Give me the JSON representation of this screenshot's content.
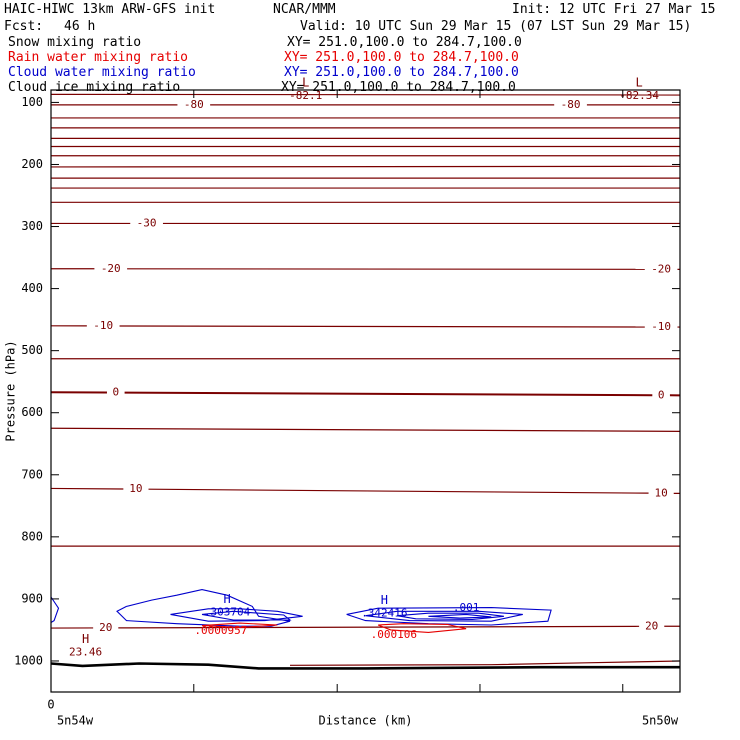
{
  "header": {
    "model": "HAIC-HIWC 13km ARW-GFS init",
    "org": "NCAR/MMM",
    "init": "Init: 12 UTC Fri 27 Mar 15",
    "fcst_label": "Fcst:",
    "fcst_value": "46 h",
    "valid": "Valid: 10 UTC Sun 29 Mar 15 (07 LST Sun 29 Mar 15)"
  },
  "fields": [
    {
      "name": "Snow mixing ratio",
      "xy": "XY= 251.0,100.0 to 284.7,100.0",
      "color": "#000000"
    },
    {
      "name": "Rain water mixing ratio",
      "xy": "XY= 251.0,100.0 to 284.7,100.0",
      "color": "#e60000"
    },
    {
      "name": "Cloud water mixing ratio",
      "xy": "XY= 251.0,100.0 to 284.7,100.0",
      "color": "#0000cc"
    },
    {
      "name": "Cloud ice mixing ratio",
      "xy": "XY= 251.0,100.0 to 284.7,100.0",
      "color": "#000000"
    }
  ],
  "colors": {
    "temperature": "#7a0000",
    "cloud_water": "#0000cc",
    "rain": "#e60000",
    "terrain": "#000000"
  },
  "chart_data": {
    "type": "cross-section contour",
    "ylabel": "Pressure (hPa)",
    "xlabel": "Distance (km)",
    "xlim": [
      0,
      1
    ],
    "ylim": [
      1050,
      80
    ],
    "y_ticks": [
      100,
      200,
      300,
      400,
      500,
      600,
      700,
      800,
      900,
      1000
    ],
    "x_ticks": [
      0,
      0.227,
      0.455,
      0.682,
      0.909
    ],
    "x_tick_label_first": "0",
    "x_endpoint_labels": [
      "5n54w",
      "5n50w"
    ],
    "temperature_contours": [
      {
        "p_left": 87,
        "p_right": 88
      },
      {
        "p_left": 104,
        "p_right": 104,
        "labels": [
          {
            "x": 0.227,
            "text": "-80"
          },
          {
            "x": 0.826,
            "text": "-80"
          }
        ]
      },
      {
        "p_left": 125,
        "p_right": 125
      },
      {
        "p_left": 141,
        "p_right": 141
      },
      {
        "p_left": 158,
        "p_right": 158
      },
      {
        "p_left": 171,
        "p_right": 171
      },
      {
        "p_left": 186,
        "p_right": 186
      },
      {
        "p_left": 204,
        "p_right": 203
      },
      {
        "p_left": 222,
        "p_right": 222
      },
      {
        "p_left": 238,
        "p_right": 238
      },
      {
        "p_left": 261,
        "p_right": 261
      },
      {
        "p_left": 295,
        "p_right": 295,
        "labels": [
          {
            "x": 0.152,
            "text": "-30"
          }
        ]
      },
      {
        "p_left": 368,
        "p_right": 369,
        "labels": [
          {
            "x": 0.095,
            "text": "-20"
          },
          {
            "x": 0.97,
            "text": "-20"
          }
        ]
      },
      {
        "p_left": 460,
        "p_right": 462,
        "labels": [
          {
            "x": 0.083,
            "text": "-10"
          },
          {
            "x": 0.97,
            "text": "-10"
          }
        ]
      },
      {
        "p_left": 513,
        "p_right": 513
      },
      {
        "p_left": 567,
        "p_right": 572,
        "labels": [
          {
            "x": 0.103,
            "text": "0"
          },
          {
            "x": 0.97,
            "text": "0"
          }
        ]
      },
      {
        "p_left": 625,
        "p_right": 630
      },
      {
        "p_left": 722,
        "p_right": 730,
        "labels": [
          {
            "x": 0.135,
            "text": "10"
          },
          {
            "x": 0.97,
            "text": "10"
          }
        ]
      },
      {
        "p_left": 815,
        "p_right": 815
      },
      {
        "p_left": 947,
        "p_right": 944,
        "labels": [
          {
            "x": 0.087,
            "text": "20"
          },
          {
            "x": 0.955,
            "text": "20"
          }
        ]
      }
    ],
    "extrema": [
      {
        "kind": "L",
        "x": 0.405,
        "p": 88,
        "value": "-82.1",
        "color": "#7a0000"
      },
      {
        "kind": "L",
        "x": 0.935,
        "p": 88,
        "value": "-82.34",
        "color": "#7a0000"
      },
      {
        "kind": "H",
        "x": 0.055,
        "p": 985,
        "value": "23.46",
        "color": "#7a0000"
      },
      {
        "kind": "H",
        "x": 0.28,
        "p": 920,
        "value": ".303704",
        "color": "#0000cc"
      },
      {
        "kind": "H",
        "x": 0.53,
        "p": 922,
        "value": ".342416",
        "color": "#0000cc"
      }
    ],
    "contour_labels": [
      {
        "x": 0.66,
        "p": 915,
        "text": ".001",
        "color": "#0000cc"
      },
      {
        "x": 0.27,
        "p": 952,
        "text": ".0000957",
        "color": "#e60000"
      },
      {
        "x": 0.545,
        "p": 958,
        "text": ".000106",
        "color": "#e60000"
      }
    ],
    "terrain": [
      [
        0,
        1004
      ],
      [
        0.05,
        1008
      ],
      [
        0.14,
        1004
      ],
      [
        0.25,
        1006
      ],
      [
        0.33,
        1012
      ],
      [
        0.5,
        1012
      ],
      [
        0.78,
        1010
      ],
      [
        1.0,
        1010
      ]
    ],
    "terrain_upper": [
      [
        0.38,
        1007
      ],
      [
        0.7,
        1006
      ],
      [
        0.85,
        1003
      ],
      [
        1.0,
        1000
      ]
    ],
    "cloud_water_contours": [
      [
        [
          0.12,
          912
        ],
        [
          0.105,
          920
        ],
        [
          0.12,
          935
        ],
        [
          0.2,
          940
        ],
        [
          0.3,
          944
        ],
        [
          0.35,
          944
        ],
        [
          0.38,
          936
        ],
        [
          0.33,
          928
        ],
        [
          0.32,
          912
        ],
        [
          0.28,
          894
        ],
        [
          0.24,
          885
        ],
        [
          0.2,
          894
        ],
        [
          0.16,
          902
        ],
        [
          0.12,
          912
        ]
      ],
      [
        [
          0.19,
          925
        ],
        [
          0.25,
          916
        ],
        [
          0.3,
          916
        ],
        [
          0.36,
          920
        ],
        [
          0.4,
          928
        ],
        [
          0.34,
          935
        ],
        [
          0.25,
          936
        ],
        [
          0.19,
          925
        ]
      ],
      [
        [
          0.24,
          925
        ],
        [
          0.29,
          920
        ],
        [
          0.37,
          926
        ],
        [
          0.38,
          934
        ],
        [
          0.29,
          934
        ],
        [
          0.24,
          925
        ]
      ],
      [
        [
          0.47,
          925
        ],
        [
          0.52,
          915
        ],
        [
          0.7,
          914
        ],
        [
          0.795,
          918
        ],
        [
          0.79,
          936
        ],
        [
          0.7,
          942
        ],
        [
          0.6,
          940
        ],
        [
          0.5,
          935
        ],
        [
          0.47,
          925
        ]
      ],
      [
        [
          0.5,
          927
        ],
        [
          0.55,
          920
        ],
        [
          0.68,
          920
        ],
        [
          0.75,
          925
        ],
        [
          0.7,
          936
        ],
        [
          0.57,
          935
        ],
        [
          0.5,
          927
        ]
      ],
      [
        [
          0.55,
          927
        ],
        [
          0.6,
          923
        ],
        [
          0.68,
          923
        ],
        [
          0.72,
          928
        ],
        [
          0.67,
          933
        ],
        [
          0.58,
          932
        ],
        [
          0.55,
          927
        ]
      ],
      [
        [
          0.6,
          928
        ],
        [
          0.66,
          925
        ],
        [
          0.7,
          929
        ],
        [
          0.65,
          931
        ],
        [
          0.6,
          928
        ]
      ],
      [
        [
          0.0,
          897
        ],
        [
          0.012,
          915
        ],
        [
          0.005,
          935
        ],
        [
          0.0,
          938
        ]
      ]
    ],
    "rain_contours": [
      [
        [
          0.24,
          943
        ],
        [
          0.3,
          939
        ],
        [
          0.36,
          942
        ],
        [
          0.3,
          946
        ],
        [
          0.24,
          943
        ]
      ],
      [
        [
          0.52,
          942
        ],
        [
          0.56,
          940
        ],
        [
          0.63,
          941
        ],
        [
          0.66,
          948
        ],
        [
          0.6,
          954
        ],
        [
          0.54,
          950
        ],
        [
          0.52,
          942
        ]
      ]
    ]
  }
}
